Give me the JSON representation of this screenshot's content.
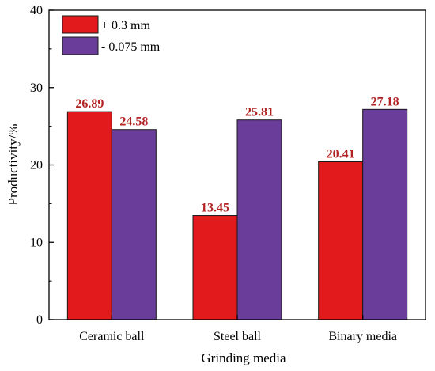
{
  "chart_data": {
    "type": "bar",
    "title": "",
    "xlabel": "Grinding media",
    "ylabel": "Productivity/%",
    "categories": [
      "Ceramic ball",
      "Steel ball",
      "Binary media"
    ],
    "series": [
      {
        "name": "+ 0.3 mm",
        "values": [
          26.89,
          13.45,
          20.41
        ],
        "color": "#e31a1c",
        "label_color": "#b22222"
      },
      {
        "name": "- 0.075 mm",
        "values": [
          24.58,
          25.81,
          27.18
        ],
        "color": "#6a3d9a",
        "label_color": "#b22222"
      }
    ],
    "value_labels": [
      [
        "26.89",
        "13.45",
        "20.41"
      ],
      [
        "24.58",
        "25.81",
        "27.18"
      ]
    ],
    "ylim": [
      0,
      40
    ],
    "yticks": [
      0,
      10,
      20,
      30,
      40
    ],
    "ytick_labels": [
      "0",
      "10",
      "20",
      "30",
      "40"
    ],
    "grid": false,
    "legend_position": "top-left"
  }
}
